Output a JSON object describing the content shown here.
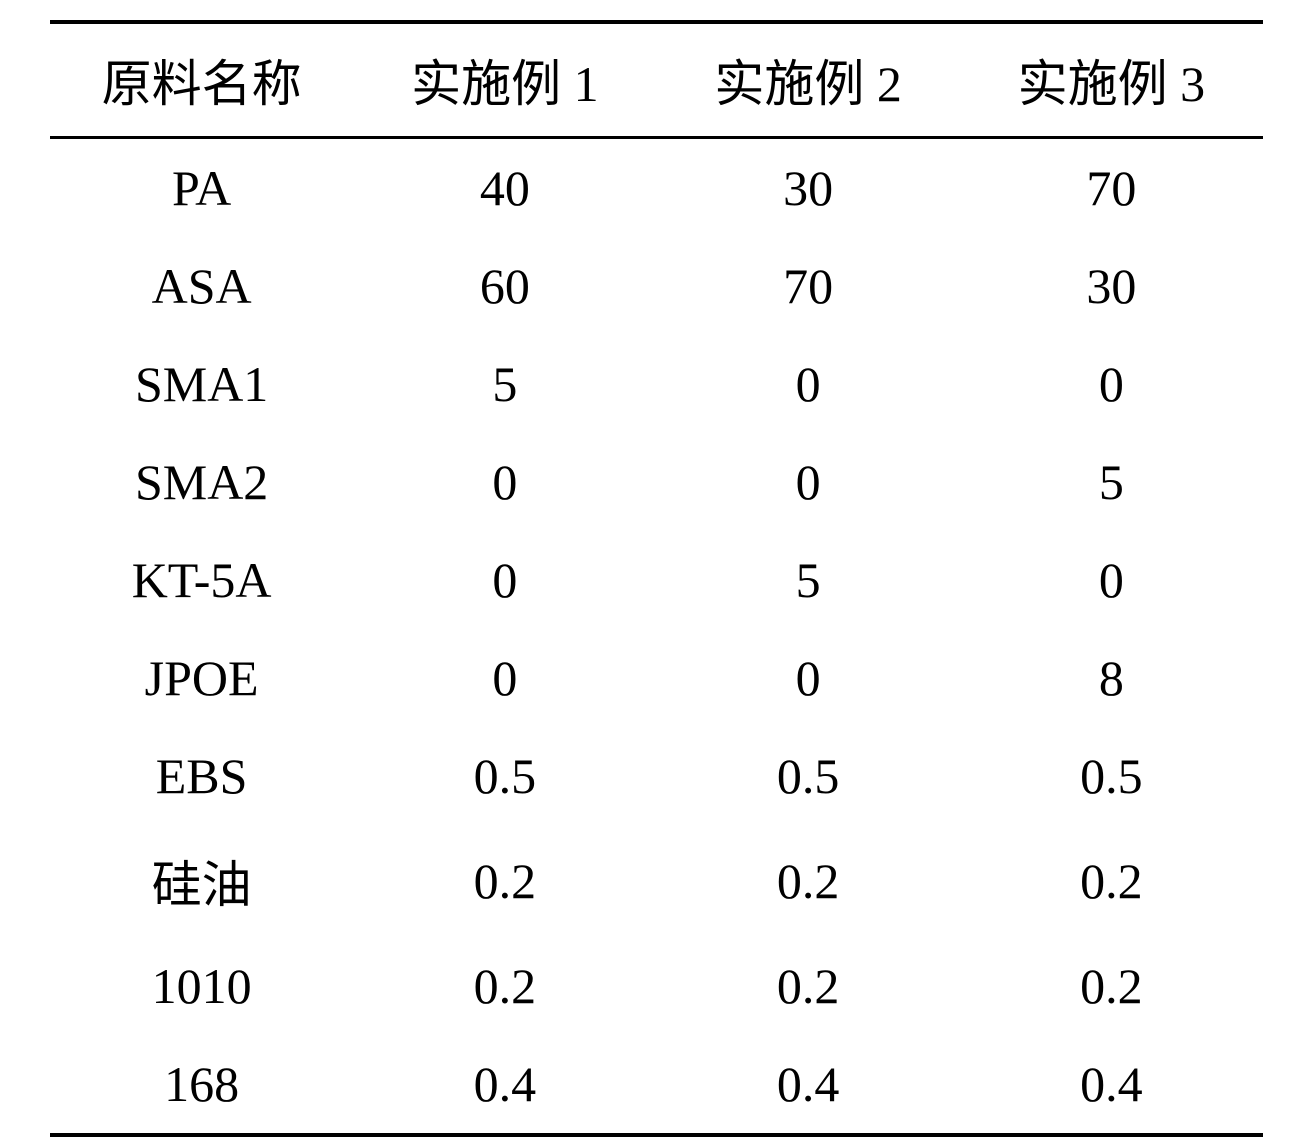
{
  "table": {
    "columns": [
      "原料名称",
      "实施例 1",
      "实施例 2",
      "实施例 3"
    ],
    "rows": [
      [
        "PA",
        "40",
        "30",
        "70"
      ],
      [
        "ASA",
        "60",
        "70",
        "30"
      ],
      [
        "SMA1",
        "5",
        "0",
        "0"
      ],
      [
        "SMA2",
        "0",
        "0",
        "5"
      ],
      [
        "KT-5A",
        "0",
        "5",
        "0"
      ],
      [
        "JPOE",
        "0",
        "0",
        "8"
      ],
      [
        "EBS",
        "0.5",
        "0.5",
        "0.5"
      ],
      [
        "硅油",
        "0.2",
        "0.2",
        "0.2"
      ],
      [
        "1010",
        "0.2",
        "0.2",
        "0.2"
      ],
      [
        "168",
        "0.4",
        "0.4",
        "0.4"
      ]
    ],
    "header_fontsize": 50,
    "cell_fontsize": 50,
    "text_color": "#000000",
    "background_color": "#ffffff",
    "border_color": "#000000",
    "top_border_width": 4,
    "header_bottom_border_width": 3,
    "bottom_border_width": 4,
    "column_alignment": [
      "center",
      "center",
      "center",
      "center"
    ]
  }
}
